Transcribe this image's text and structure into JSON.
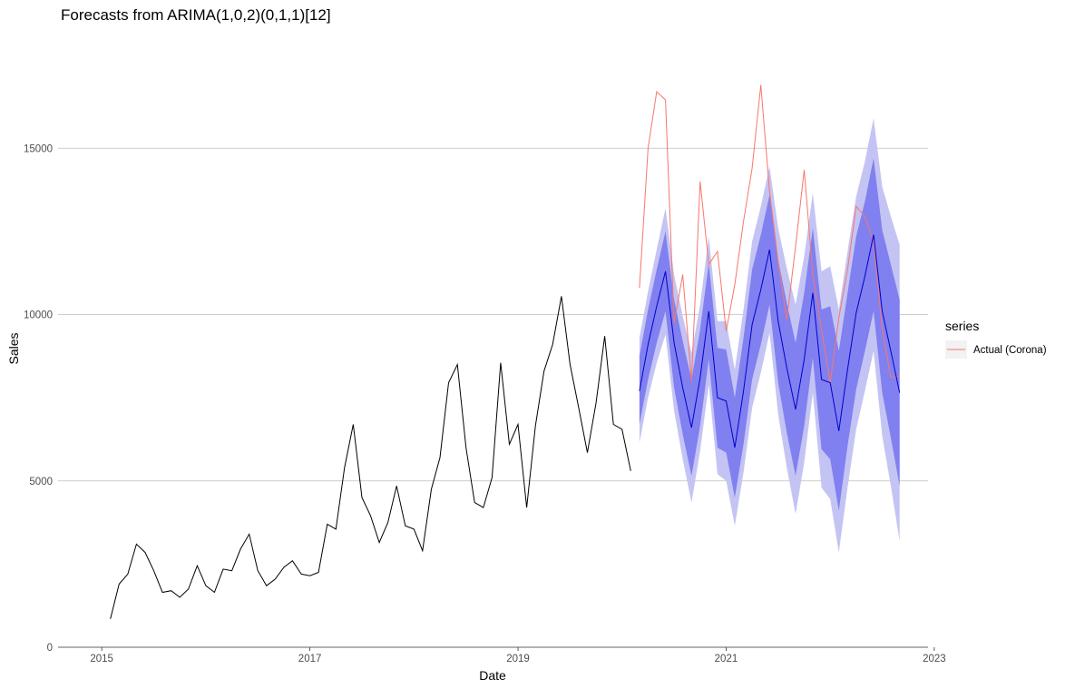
{
  "chart_data": {
    "type": "line",
    "title": "Forecasts from ARIMA(1,0,2)(0,1,1)[12]",
    "xlabel": "Date",
    "ylabel": "Sales",
    "xlim": [
      2014.58,
      2022.94
    ],
    "ylim": [
      0,
      18500
    ],
    "x_ticks": [
      2015,
      2017,
      2019,
      2021,
      2023
    ],
    "y_ticks": [
      0,
      5000,
      10000,
      15000
    ],
    "grid": "horizontal major lines",
    "legend": {
      "title": "series",
      "placement": "right",
      "entries": [
        "Actual (Corona)"
      ]
    },
    "colors": {
      "history": "#000000",
      "forecast": "#0000cc",
      "band_80": "#8080f0",
      "band_95": "#c4c4f4",
      "actual": "#f8766d",
      "grid": "#bebebe"
    },
    "series": [
      {
        "role": "history",
        "x": [
          2015.083,
          2015.167,
          2015.25,
          2015.333,
          2015.417,
          2015.5,
          2015.583,
          2015.667,
          2015.75,
          2015.833,
          2015.917,
          2016.0,
          2016.083,
          2016.167,
          2016.25,
          2016.333,
          2016.417,
          2016.5,
          2016.583,
          2016.667,
          2016.75,
          2016.833,
          2016.917,
          2017.0,
          2017.083,
          2017.167,
          2017.25,
          2017.333,
          2017.417,
          2017.5,
          2017.583,
          2017.667,
          2017.75,
          2017.833,
          2017.917,
          2018.0,
          2018.083,
          2018.167,
          2018.25,
          2018.333,
          2018.417,
          2018.5,
          2018.583,
          2018.667,
          2018.75,
          2018.833,
          2018.917,
          2019.0,
          2019.083,
          2019.167,
          2019.25,
          2019.333,
          2019.417,
          2019.5,
          2019.583,
          2019.667,
          2019.75,
          2019.833,
          2019.917,
          2020.0,
          2020.083
        ],
        "values": [
          850,
          1900,
          2200,
          3100,
          2850,
          2300,
          1650,
          1700,
          1500,
          1750,
          2450,
          1850,
          1650,
          2350,
          2300,
          2950,
          3400,
          2300,
          1850,
          2050,
          2400,
          2600,
          2200,
          2150,
          2250,
          3700,
          3550,
          5400,
          6700,
          4500,
          3950,
          3150,
          3750,
          4850,
          3650,
          3550,
          2900,
          4750,
          5700,
          7950,
          8500,
          6000,
          4350,
          4200,
          5100,
          8550,
          6100,
          6700,
          4200,
          6650,
          8300,
          9100,
          10550,
          8500,
          7200,
          5850,
          7350,
          9350,
          6700,
          6550,
          5300
        ]
      },
      {
        "name": "Actual (Corona)",
        "x": [
          2020.167,
          2020.25,
          2020.333,
          2020.417,
          2020.5,
          2020.583,
          2020.667,
          2020.75,
          2020.833,
          2020.917,
          2021.0,
          2021.083,
          2021.167,
          2021.25,
          2021.333,
          2021.417,
          2021.5,
          2021.583,
          2021.667,
          2021.75,
          2021.833,
          2021.917,
          2022.0,
          2022.083,
          2022.167,
          2022.25,
          2022.333,
          2022.417,
          2022.5,
          2022.583,
          2022.667
        ],
        "values": [
          10800,
          15000,
          16700,
          16450,
          9750,
          11200,
          8000,
          14000,
          11500,
          11900,
          9500,
          10900,
          12800,
          14400,
          16900,
          13700,
          11600,
          9850,
          12050,
          14350,
          11200,
          9550,
          7950,
          9900,
          11350,
          13250,
          12950,
          12200,
          9550,
          8100,
          8150
        ]
      },
      {
        "role": "forecast_mean",
        "x": [
          2020.167,
          2020.25,
          2020.333,
          2020.417,
          2020.5,
          2020.583,
          2020.667,
          2020.75,
          2020.833,
          2020.917,
          2021.0,
          2021.083,
          2021.167,
          2021.25,
          2021.333,
          2021.417,
          2021.5,
          2021.583,
          2021.667,
          2021.75,
          2021.833,
          2021.917,
          2022.0,
          2022.083,
          2022.167,
          2022.25,
          2022.333,
          2022.417,
          2022.5,
          2022.583,
          2022.667
        ],
        "values": [
          7700,
          9100,
          10250,
          11300,
          9150,
          7800,
          6600,
          8100,
          10100,
          7500,
          7400,
          6000,
          7700,
          9700,
          10750,
          11950,
          9800,
          8400,
          7150,
          8650,
          10650,
          8050,
          7950,
          6500,
          8350,
          10050,
          11150,
          12400,
          10100,
          8900,
          7650
        ]
      }
    ],
    "bands": {
      "lo80": [
        6700,
        8050,
        9150,
        10100,
        7800,
        6400,
        5150,
        6650,
        8650,
        6000,
        5850,
        4500,
        6100,
        8050,
        9100,
        10300,
        7950,
        6450,
        5150,
        6650,
        8700,
        5950,
        5650,
        4100,
        6050,
        7750,
        8900,
        10100,
        7650,
        6300,
        4850
      ],
      "hi80": [
        8750,
        10150,
        11350,
        12500,
        10450,
        9200,
        8050,
        9550,
        11550,
        9000,
        8950,
        7500,
        9300,
        11350,
        12400,
        13600,
        11650,
        10350,
        9150,
        10650,
        12600,
        10150,
        10250,
        8900,
        10650,
        12350,
        13400,
        14700,
        12550,
        11500,
        10450
      ],
      "lo95": [
        6150,
        7500,
        8550,
        9400,
        7100,
        5650,
        4350,
        5900,
        7900,
        5200,
        5000,
        3650,
        5250,
        7200,
        8250,
        9450,
        7000,
        5400,
        4000,
        5550,
        7650,
        4800,
        4450,
        2850,
        4800,
        6550,
        7700,
        8900,
        6350,
        4850,
        3200
      ],
      "hi95": [
        9300,
        10700,
        11950,
        13200,
        11200,
        9950,
        8850,
        10300,
        12350,
        9800,
        9800,
        8350,
        10150,
        12200,
        13250,
        14450,
        12600,
        11400,
        10300,
        11750,
        13650,
        11300,
        11450,
        10150,
        11900,
        13550,
        14600,
        15900,
        13850,
        12950,
        12100
      ]
    }
  }
}
